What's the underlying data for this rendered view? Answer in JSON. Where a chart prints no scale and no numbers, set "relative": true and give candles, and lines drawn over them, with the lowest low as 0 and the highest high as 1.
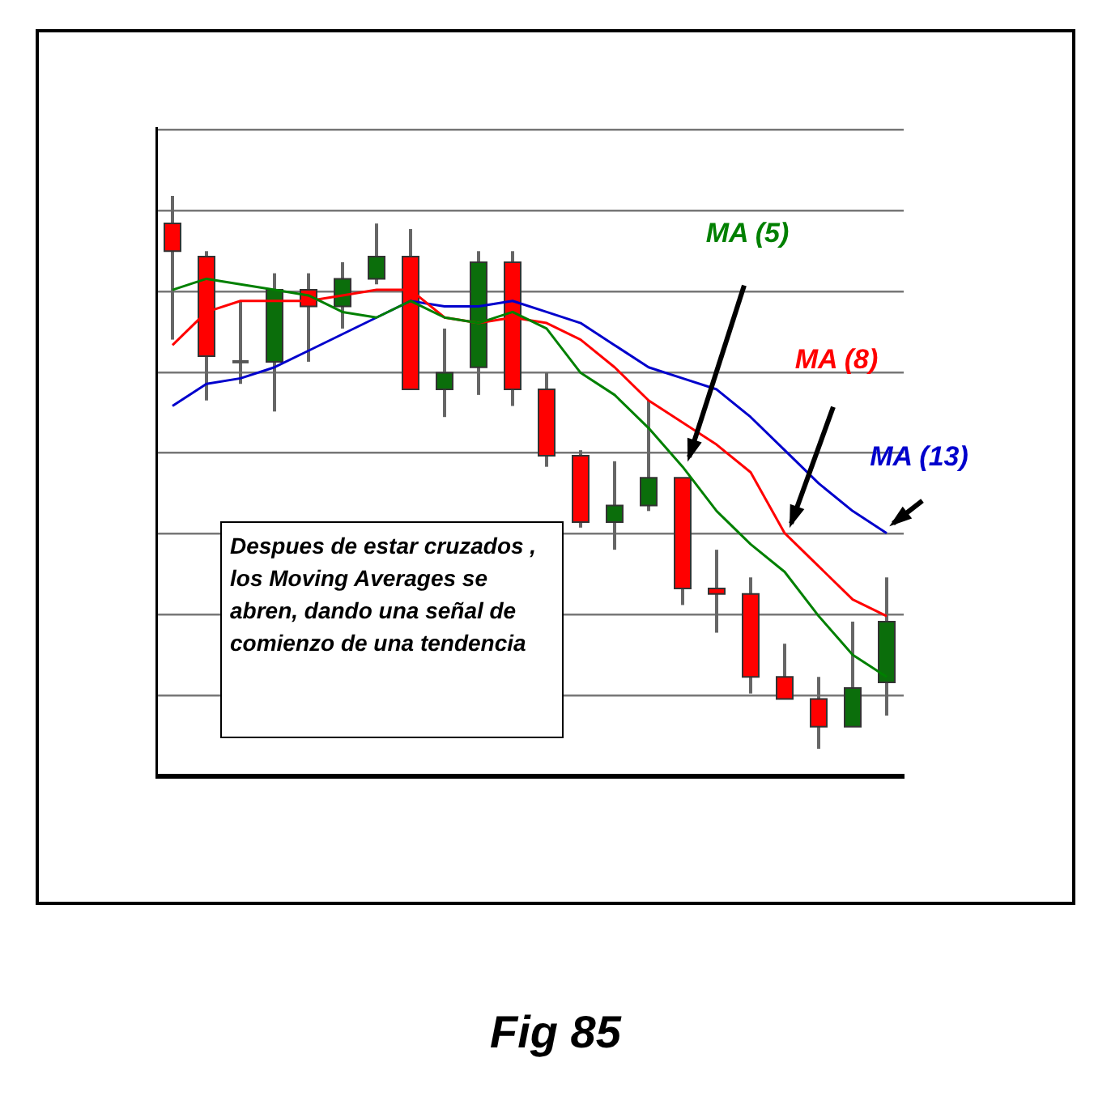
{
  "chart_data": {
    "type": "candlestick",
    "relative": true,
    "grid": "y",
    "legend": false,
    "categories": [
      null,
      null,
      null,
      null,
      null,
      null,
      null,
      null,
      null,
      null,
      null,
      null,
      null,
      null,
      null,
      null,
      null,
      null,
      null,
      null,
      null,
      null
    ],
    "ohlc": [
      [
        0.95,
        1.0,
        0.74,
        0.9
      ],
      [
        0.89,
        0.9,
        0.63,
        0.71
      ],
      [
        0.7,
        0.81,
        0.66,
        0.7
      ],
      [
        0.7,
        0.86,
        0.61,
        0.83
      ],
      [
        0.83,
        0.86,
        0.7,
        0.8
      ],
      [
        0.8,
        0.88,
        0.76,
        0.85
      ],
      [
        0.85,
        0.95,
        0.84,
        0.89
      ],
      [
        0.89,
        0.94,
        0.65,
        0.65
      ],
      [
        0.65,
        0.76,
        0.6,
        0.68
      ],
      [
        0.69,
        0.9,
        0.64,
        0.88
      ],
      [
        0.88,
        0.9,
        0.62,
        0.65
      ],
      [
        0.65,
        0.68,
        0.51,
        0.53
      ],
      [
        0.53,
        0.54,
        0.4,
        0.41
      ],
      [
        0.41,
        0.52,
        0.36,
        0.44
      ],
      [
        0.44,
        0.63,
        0.43,
        0.49
      ],
      [
        0.49,
        0.49,
        0.26,
        0.29
      ],
      [
        0.29,
        0.36,
        0.21,
        0.28
      ],
      [
        0.28,
        0.31,
        0.1,
        0.13
      ],
      [
        0.13,
        0.19,
        0.09,
        0.09
      ],
      [
        0.09,
        0.13,
        0.0,
        0.04
      ],
      [
        0.04,
        0.23,
        0.04,
        0.11
      ],
      [
        0.12,
        0.31,
        0.06,
        0.23
      ]
    ],
    "series": [
      {
        "name": "MA (5)",
        "type": "line",
        "color": "#008000",
        "values": [
          0.83,
          0.85,
          0.84,
          0.83,
          0.82,
          0.79,
          0.78,
          0.81,
          0.78,
          0.77,
          0.79,
          0.76,
          0.68,
          0.64,
          0.58,
          0.51,
          0.43,
          0.37,
          0.32,
          0.24,
          0.17,
          0.13
        ]
      },
      {
        "name": "MA (8)",
        "type": "line",
        "color": "#ff0000",
        "values": [
          0.73,
          0.79,
          0.81,
          0.81,
          0.81,
          0.82,
          0.83,
          0.83,
          0.78,
          0.77,
          0.78,
          0.77,
          0.74,
          0.69,
          0.63,
          0.59,
          0.55,
          0.5,
          0.39,
          0.33,
          0.27,
          0.24
        ]
      },
      {
        "name": "MA (13)",
        "type": "line",
        "color": "#0000cc",
        "values": [
          0.62,
          0.66,
          0.67,
          0.69,
          0.72,
          0.75,
          0.78,
          0.81,
          0.8,
          0.8,
          0.81,
          0.79,
          0.77,
          0.73,
          0.69,
          0.67,
          0.65,
          0.6,
          0.54,
          0.48,
          0.43,
          0.39
        ]
      }
    ],
    "annotations": [
      "Despues de estar cruzados , los Moving Averages se abren, dando una señal de comienzo de una tendencia",
      "Fig 85"
    ]
  }
}
